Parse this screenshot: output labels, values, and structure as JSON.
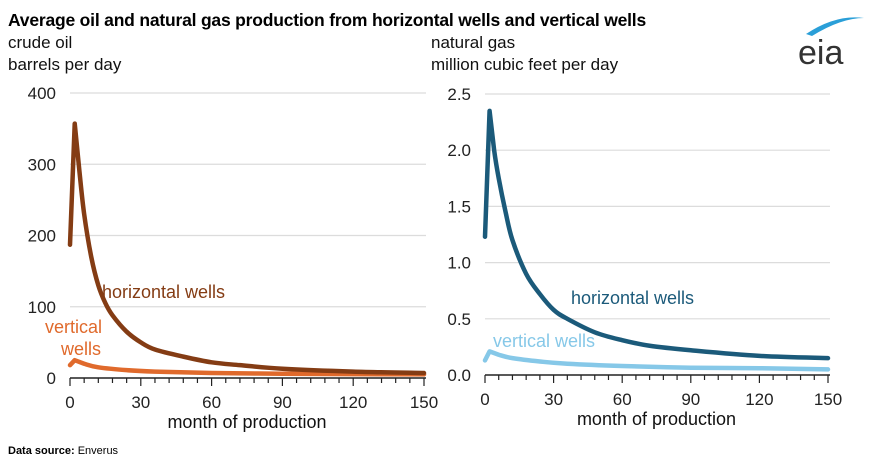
{
  "title": "Average oil and natural gas production from horizontal wells and vertical wells",
  "source_label": "Data source:",
  "source_value": "Enverus",
  "logo_text": "eia",
  "chart_data": [
    {
      "type": "line",
      "subtitle": "crude oil",
      "ylabel": "barrels per day",
      "xlabel": "month of production",
      "xlim": [
        0,
        150
      ],
      "ylim": [
        0,
        400
      ],
      "xticks": [
        0,
        30,
        60,
        90,
        120,
        150
      ],
      "yticks": [
        0,
        100,
        200,
        300,
        400
      ],
      "ytick_labels": [
        "0",
        "100",
        "200",
        "300",
        "400"
      ],
      "grid": true,
      "series": [
        {
          "name": "horizontal wells",
          "color": "#843c14",
          "x": [
            0,
            2,
            4,
            6,
            9,
            12,
            15,
            18,
            24,
            30,
            36,
            48,
            60,
            72,
            90,
            120,
            150
          ],
          "y": [
            187,
            357,
            290,
            230,
            170,
            130,
            105,
            88,
            65,
            50,
            40,
            30,
            22,
            18,
            13,
            9,
            7
          ]
        },
        {
          "name": "vertical wells",
          "color": "#e06a2c",
          "x": [
            0,
            2,
            6,
            12,
            24,
            36,
            60,
            90,
            120,
            150
          ],
          "y": [
            18,
            25,
            20,
            15,
            11,
            9,
            7,
            6,
            5.5,
            5
          ]
        }
      ],
      "labels": [
        {
          "text": "horizontal wells",
          "series": 0
        },
        {
          "text": "vertical",
          "series": 1
        },
        {
          "text": "wells",
          "series": 1
        }
      ]
    },
    {
      "type": "line",
      "subtitle": "natural gas",
      "ylabel": "million cubic feet per day",
      "xlabel": "month of production",
      "xlim": [
        0,
        150
      ],
      "ylim": [
        0,
        2.5
      ],
      "xticks": [
        0,
        30,
        60,
        90,
        120,
        150
      ],
      "yticks": [
        0,
        0.5,
        1.0,
        1.5,
        2.0,
        2.5
      ],
      "ytick_labels": [
        "0.0",
        "0.5",
        "1.0",
        "1.5",
        "2.0",
        "2.5"
      ],
      "grid": true,
      "series": [
        {
          "name": "horizontal wells",
          "color": "#1b5a7a",
          "x": [
            0,
            2,
            4,
            6,
            9,
            12,
            18,
            24,
            30,
            36,
            48,
            60,
            72,
            90,
            120,
            150
          ],
          "y": [
            1.23,
            2.35,
            2.0,
            1.75,
            1.45,
            1.2,
            0.9,
            0.72,
            0.58,
            0.5,
            0.38,
            0.31,
            0.26,
            0.22,
            0.17,
            0.15
          ]
        },
        {
          "name": "vertical wells",
          "color": "#86c8e8",
          "x": [
            0,
            2,
            6,
            12,
            24,
            36,
            60,
            90,
            120,
            150
          ],
          "y": [
            0.13,
            0.21,
            0.18,
            0.15,
            0.12,
            0.1,
            0.08,
            0.065,
            0.06,
            0.05
          ]
        }
      ],
      "labels": [
        {
          "text": "horizontal wells",
          "series": 0
        },
        {
          "text": "vertical wells",
          "series": 1
        }
      ]
    }
  ]
}
